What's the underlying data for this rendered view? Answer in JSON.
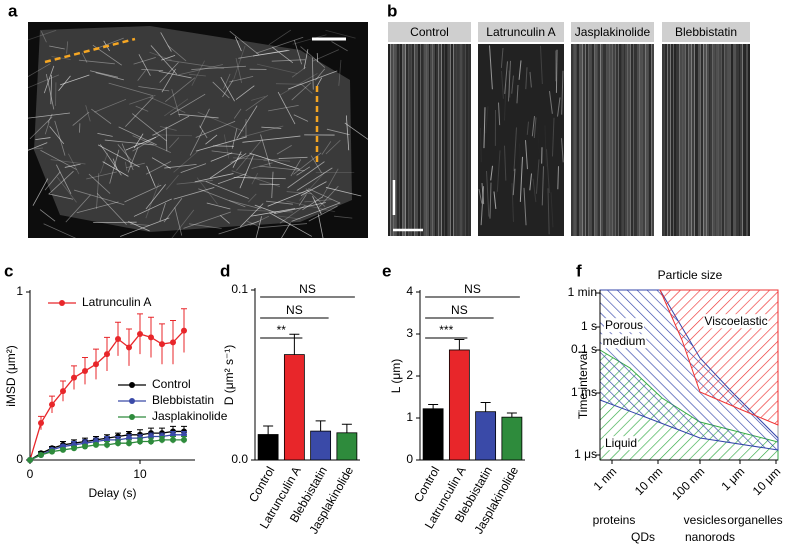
{
  "image_panel": {
    "label": "a"
  },
  "kymograph_panel": {
    "label": "b",
    "columns": [
      "Control",
      "Latrunculin A",
      "Jasplakinolide",
      "Blebbistatin"
    ]
  },
  "chart_data": [
    {
      "type": "line",
      "label": "c",
      "x_label": "Delay (s)",
      "y_label": "iMSD (μm²)",
      "x": [
        0,
        1,
        2,
        3,
        4,
        5,
        6,
        7,
        8,
        9,
        10,
        11,
        12,
        13,
        14
      ],
      "xlim": [
        0,
        15
      ],
      "xticks": [
        0,
        10
      ],
      "ylim": [
        0,
        1
      ],
      "yticks": [
        0,
        1
      ],
      "series": [
        {
          "name": "Latrunculin A",
          "color": "#e8262a",
          "values": [
            0,
            0.22,
            0.33,
            0.41,
            0.49,
            0.53,
            0.57,
            0.63,
            0.72,
            0.67,
            0.75,
            0.73,
            0.69,
            0.7,
            0.77
          ],
          "errors": [
            0,
            0.04,
            0.05,
            0.06,
            0.07,
            0.08,
            0.09,
            0.1,
            0.1,
            0.11,
            0.12,
            0.12,
            0.12,
            0.13,
            0.13
          ]
        },
        {
          "name": "Control",
          "color": "#000000",
          "values": [
            0,
            0.04,
            0.07,
            0.09,
            0.1,
            0.11,
            0.12,
            0.13,
            0.14,
            0.15,
            0.15,
            0.16,
            0.16,
            0.17,
            0.17
          ],
          "errors": [
            0,
            0.01,
            0.01,
            0.02,
            0.02,
            0.02,
            0.02,
            0.02,
            0.02,
            0.02,
            0.03,
            0.03,
            0.03,
            0.03,
            0.03
          ]
        },
        {
          "name": "Blebbistatin",
          "color": "#3a4aa8",
          "values": [
            0,
            0.03,
            0.06,
            0.08,
            0.09,
            0.1,
            0.11,
            0.12,
            0.12,
            0.13,
            0.13,
            0.14,
            0.14,
            0.15,
            0.15
          ],
          "errors": [
            0,
            0.01,
            0.01,
            0.01,
            0.02,
            0.02,
            0.02,
            0.02,
            0.02,
            0.02,
            0.02,
            0.02,
            0.02,
            0.02,
            0.02
          ]
        },
        {
          "name": "Jasplakinolide",
          "color": "#2e8b3c",
          "values": [
            0,
            0.03,
            0.05,
            0.06,
            0.07,
            0.08,
            0.09,
            0.09,
            0.1,
            0.1,
            0.11,
            0.11,
            0.12,
            0.12,
            0.12
          ],
          "errors": [
            0,
            0.01,
            0.01,
            0.01,
            0.01,
            0.01,
            0.01,
            0.02,
            0.02,
            0.02,
            0.02,
            0.02,
            0.02,
            0.02,
            0.02
          ]
        }
      ]
    },
    {
      "type": "bar",
      "label": "d",
      "y_label": "D (μm² s⁻¹)",
      "categories": [
        "Control",
        "Latrunculin A",
        "Blebbistatin",
        "Jasplakinolide"
      ],
      "values": [
        0.015,
        0.062,
        0.017,
        0.016
      ],
      "errors": [
        0.005,
        0.012,
        0.006,
        0.005
      ],
      "colors": [
        "#000000",
        "#e8262a",
        "#3a4aa8",
        "#2e8b3c"
      ],
      "ylim": [
        0,
        0.1
      ],
      "yticks": [
        {
          "value": 0,
          "label": "0.0"
        },
        {
          "value": 0.1,
          "label": "0.1"
        }
      ],
      "annotations": [
        {
          "text": "NS",
          "between": [
            "Control",
            "Jasplakinolide"
          ]
        },
        {
          "text": "NS",
          "between": [
            "Control",
            "Blebbistatin"
          ]
        },
        {
          "text": "**",
          "between": [
            "Control",
            "Latrunculin A"
          ]
        }
      ]
    },
    {
      "type": "bar",
      "label": "e",
      "y_label": "L (μm)",
      "categories": [
        "Control",
        "Latrunculin A",
        "Blebbistatin",
        "Jasplakinolide"
      ],
      "values": [
        1.22,
        2.62,
        1.15,
        1.02
      ],
      "errors": [
        0.1,
        0.25,
        0.22,
        0.1
      ],
      "colors": [
        "#000000",
        "#e8262a",
        "#3a4aa8",
        "#2e8b3c"
      ],
      "ylim": [
        0,
        4
      ],
      "yticks": [
        0,
        1,
        2,
        3,
        4
      ],
      "annotations": [
        {
          "text": "NS",
          "between": [
            "Control",
            "Jasplakinolide"
          ]
        },
        {
          "text": "NS",
          "between": [
            "Control",
            "Blebbistatin"
          ]
        },
        {
          "text": "***",
          "between": [
            "Control",
            "Latrunculin A"
          ]
        }
      ]
    }
  ],
  "diagram_panel": {
    "label": "f",
    "title": "Particle size",
    "y_axis_label": "Time interval",
    "y_labels": [
      "1 min",
      "1 s",
      "0.1 s",
      "1 ms",
      "1 μs"
    ],
    "x_labels": [
      "1 nm",
      "10 nm",
      "100 nm",
      "1 μm",
      "10 μm"
    ],
    "region_labels": [
      "Porous",
      "medium",
      "Viscoelastic",
      "Liquid"
    ],
    "particles": [
      "proteins",
      "QDs",
      "vesicles",
      "nanorods",
      "organelles"
    ]
  }
}
